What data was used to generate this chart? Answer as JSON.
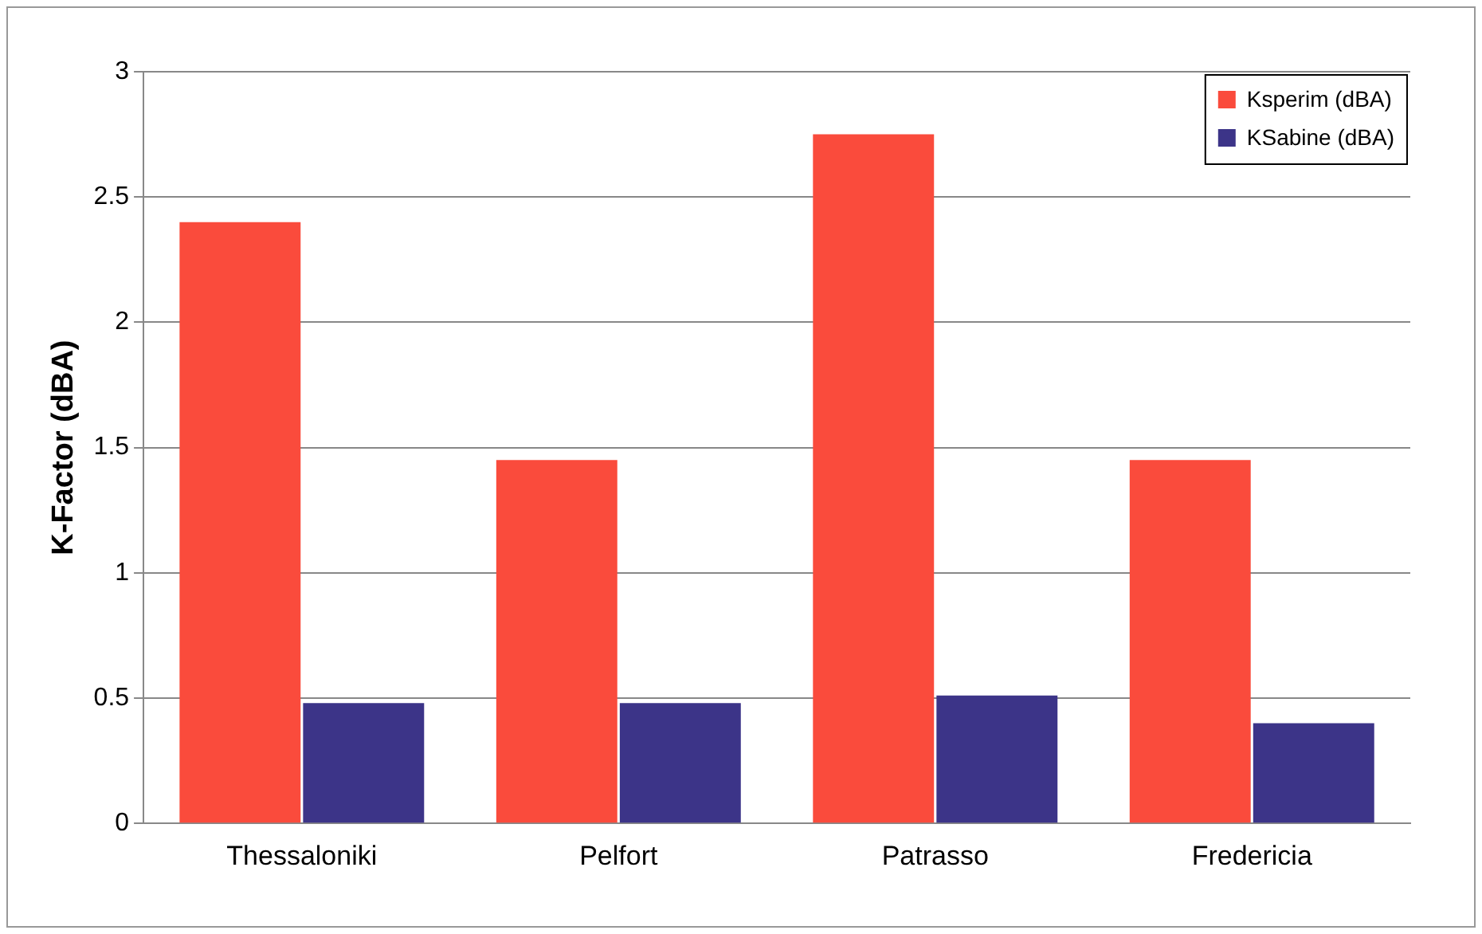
{
  "chart_data": {
    "type": "bar",
    "ylabel": "K-Factor (dBA)",
    "categories": [
      "Thessaloniki",
      "Pelfort",
      "Patrasso",
      "Fredericia"
    ],
    "series": [
      {
        "name": "Ksperim (dBA)",
        "color": "#fa4b3c",
        "values": [
          2.4,
          1.45,
          2.75,
          1.45
        ]
      },
      {
        "name": "KSabine (dBA)",
        "color": "#3c3488",
        "values": [
          0.48,
          0.48,
          0.51,
          0.4
        ]
      }
    ],
    "ylim": [
      0,
      3
    ],
    "yticks": [
      0,
      0.5,
      1,
      1.5,
      2,
      2.5,
      3
    ],
    "grid": "y",
    "legend": "top right"
  }
}
